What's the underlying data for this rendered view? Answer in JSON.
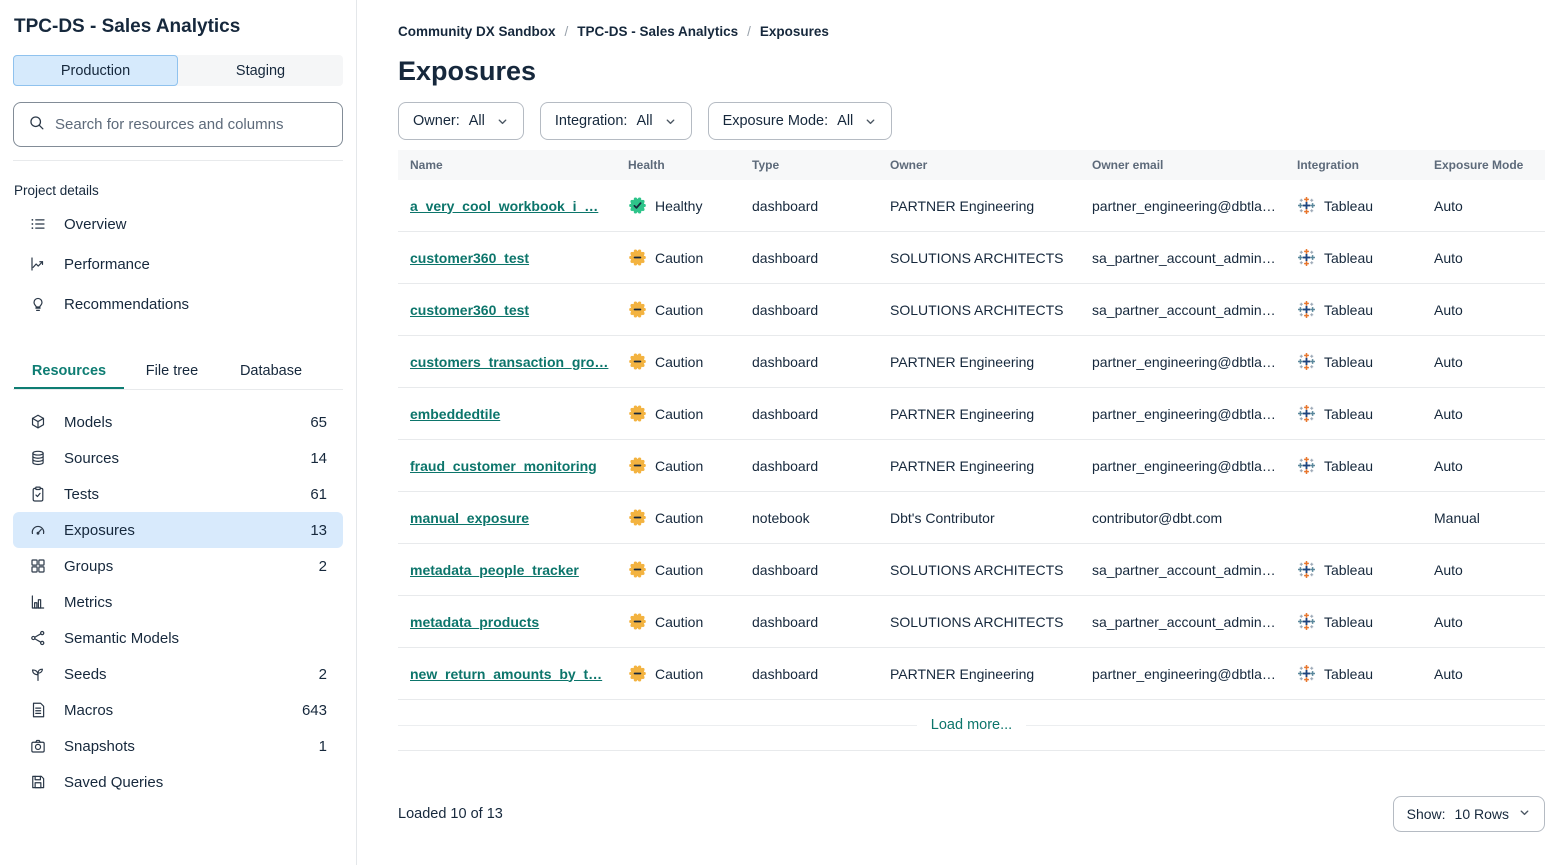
{
  "sidebar": {
    "title": "TPC-DS - Sales Analytics",
    "env_tabs": [
      {
        "label": "Production",
        "active": true
      },
      {
        "label": "Staging",
        "active": false
      }
    ],
    "search_placeholder": "Search for resources and columns",
    "project_details_label": "Project details",
    "project_links": [
      {
        "label": "Overview",
        "icon": "list-icon"
      },
      {
        "label": "Performance",
        "icon": "chart-line-icon"
      },
      {
        "label": "Recommendations",
        "icon": "lightbulb-icon"
      }
    ],
    "view_tabs": [
      {
        "label": "Resources",
        "active": true
      },
      {
        "label": "File tree",
        "active": false
      },
      {
        "label": "Database",
        "active": false
      }
    ],
    "resources": [
      {
        "label": "Models",
        "count": "65",
        "icon": "cube-icon",
        "selected": false
      },
      {
        "label": "Sources",
        "count": "14",
        "icon": "database-icon",
        "selected": false
      },
      {
        "label": "Tests",
        "count": "61",
        "icon": "clipboard-check-icon",
        "selected": false
      },
      {
        "label": "Exposures",
        "count": "13",
        "icon": "gauge-icon",
        "selected": true
      },
      {
        "label": "Groups",
        "count": "2",
        "icon": "grid-icon",
        "selected": false
      },
      {
        "label": "Metrics",
        "count": "",
        "icon": "bar-chart-icon",
        "selected": false
      },
      {
        "label": "Semantic Models",
        "count": "",
        "icon": "share-nodes-icon",
        "selected": false
      },
      {
        "label": "Seeds",
        "count": "2",
        "icon": "seedling-icon",
        "selected": false
      },
      {
        "label": "Macros",
        "count": "643",
        "icon": "file-lines-icon",
        "selected": false
      },
      {
        "label": "Snapshots",
        "count": "1",
        "icon": "camera-icon",
        "selected": false
      },
      {
        "label": "Saved Queries",
        "count": "",
        "icon": "save-icon",
        "selected": false
      }
    ]
  },
  "breadcrumb": [
    "Community DX Sandbox",
    "TPC-DS - Sales Analytics",
    "Exposures"
  ],
  "page": {
    "title": "Exposures"
  },
  "filters": [
    {
      "label": "Owner:",
      "value": "All"
    },
    {
      "label": "Integration:",
      "value": "All"
    },
    {
      "label": "Exposure Mode:",
      "value": "All"
    }
  ],
  "table": {
    "columns": [
      "Name",
      "Health",
      "Type",
      "Owner",
      "Owner email",
      "Integration",
      "Exposure Mode"
    ],
    "rows": [
      {
        "name": "a_very_cool_workbook_i_…",
        "health": "Healthy",
        "health_status": "healthy",
        "type": "dashboard",
        "owner": "PARTNER Engineering",
        "owner_email": "partner_engineering@dbtla…",
        "integration": "Tableau",
        "mode": "Auto"
      },
      {
        "name": "customer360_test",
        "health": "Caution",
        "health_status": "caution",
        "type": "dashboard",
        "owner": "SOLUTIONS ARCHITECTS",
        "owner_email": "sa_partner_account_admin…",
        "integration": "Tableau",
        "mode": "Auto"
      },
      {
        "name": "customer360_test",
        "health": "Caution",
        "health_status": "caution",
        "type": "dashboard",
        "owner": "SOLUTIONS ARCHITECTS",
        "owner_email": "sa_partner_account_admin…",
        "integration": "Tableau",
        "mode": "Auto"
      },
      {
        "name": "customers_transaction_gro…",
        "health": "Caution",
        "health_status": "caution",
        "type": "dashboard",
        "owner": "PARTNER Engineering",
        "owner_email": "partner_engineering@dbtla…",
        "integration": "Tableau",
        "mode": "Auto"
      },
      {
        "name": "embeddedtile",
        "health": "Caution",
        "health_status": "caution",
        "type": "dashboard",
        "owner": "PARTNER Engineering",
        "owner_email": "partner_engineering@dbtla…",
        "integration": "Tableau",
        "mode": "Auto"
      },
      {
        "name": "fraud_customer_monitoring",
        "health": "Caution",
        "health_status": "caution",
        "type": "dashboard",
        "owner": "PARTNER Engineering",
        "owner_email": "partner_engineering@dbtla…",
        "integration": "Tableau",
        "mode": "Auto"
      },
      {
        "name": "manual_exposure",
        "health": "Caution",
        "health_status": "caution",
        "type": "notebook",
        "owner": "Dbt's Contributor",
        "owner_email": "contributor@dbt.com",
        "integration": "",
        "mode": "Manual"
      },
      {
        "name": "metadata_people_tracker",
        "health": "Caution",
        "health_status": "caution",
        "type": "dashboard",
        "owner": "SOLUTIONS ARCHITECTS",
        "owner_email": "sa_partner_account_admin…",
        "integration": "Tableau",
        "mode": "Auto"
      },
      {
        "name": "metadata_products",
        "health": "Caution",
        "health_status": "caution",
        "type": "dashboard",
        "owner": "SOLUTIONS ARCHITECTS",
        "owner_email": "sa_partner_account_admin…",
        "integration": "Tableau",
        "mode": "Auto"
      },
      {
        "name": "new_return_amounts_by_t…",
        "health": "Caution",
        "health_status": "caution",
        "type": "dashboard",
        "owner": "PARTNER Engineering",
        "owner_email": "partner_engineering@dbtla…",
        "integration": "Tableau",
        "mode": "Auto"
      }
    ],
    "load_more": "Load more..."
  },
  "footer": {
    "loaded_text": "Loaded 10 of 13",
    "show_label": "Show:",
    "show_value": "10 Rows"
  },
  "colors": {
    "healthy": "#2ec48a",
    "caution": "#f3b340",
    "link_teal": "#0c756b",
    "selected_blue": "#d8eafc",
    "tableau_center": "#1f457e",
    "tableau_orange": "#e8762d",
    "tableau_steel": "#59879b",
    "tableau_gray": "#9aa7b5"
  }
}
